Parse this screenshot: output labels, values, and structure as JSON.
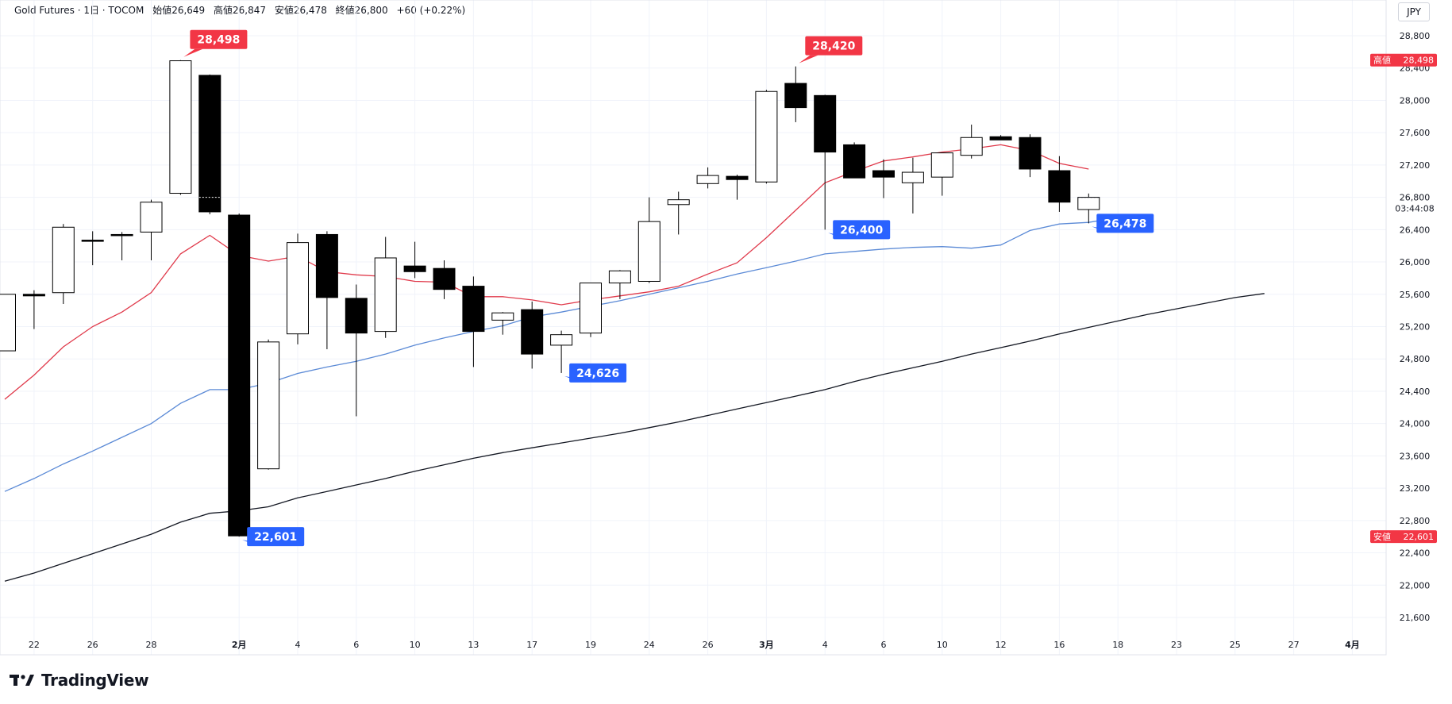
{
  "header": {
    "symbol": "Gold Futures · 1日 · TOCOM",
    "open": "始値26,649",
    "high": "高値26,847",
    "low": "安値26,478",
    "close": "終値26,800",
    "change": "+60 (+0.22%)"
  },
  "currency": "JPY",
  "brand": "TradingView",
  "colors": {
    "up_body": "#ffffff",
    "down_body": "#000000",
    "ma_short": "#e03a4b",
    "ma_mid": "#5b8ad6",
    "ma_long": "#131722",
    "high_tag": "#f23645",
    "low_tag": "#2962ff"
  },
  "chart_data": {
    "type": "candlestick",
    "ylim": [
      21400,
      28900
    ],
    "y_ticks": [
      "28,800",
      "28,400",
      "28,000",
      "27,600",
      "27,200",
      "26,800",
      "26,400",
      "26,000",
      "25,600",
      "25,200",
      "24,800",
      "24,400",
      "24,000",
      "23,600",
      "23,200",
      "22,800",
      "22,400",
      "22,000",
      "21,600"
    ],
    "y_tick_values": [
      28800,
      28400,
      28000,
      27600,
      27200,
      26800,
      26400,
      26000,
      25600,
      25200,
      24800,
      24400,
      24000,
      23600,
      23200,
      22800,
      22400,
      22000,
      21600
    ],
    "x_ticks": [
      "22",
      "26",
      "28",
      "2月",
      "4",
      "6",
      "10",
      "13",
      "17",
      "19",
      "24",
      "26",
      "3月",
      "4",
      "6",
      "10",
      "12",
      "16",
      "18",
      "23",
      "25",
      "27",
      "4月"
    ],
    "x_tick_bold": [
      "2月",
      "3月",
      "4月"
    ],
    "x_tick_index": [
      1,
      3,
      5,
      8,
      10,
      12,
      14,
      16,
      18,
      20,
      22,
      24,
      26,
      28,
      30,
      32,
      34,
      36,
      38,
      40,
      42,
      44,
      46
    ],
    "candles": [
      {
        "o": 24900,
        "h": 25600,
        "l": 24900,
        "c": 25600
      },
      {
        "o": 25600,
        "h": 25650,
        "l": 25170,
        "c": 25580
      },
      {
        "o": 25620,
        "h": 26470,
        "l": 25480,
        "c": 26430
      },
      {
        "o": 26270,
        "h": 26380,
        "l": 25960,
        "c": 26260
      },
      {
        "o": 26340,
        "h": 26370,
        "l": 26020,
        "c": 26330
      },
      {
        "o": 26370,
        "h": 26770,
        "l": 26020,
        "c": 26740
      },
      {
        "o": 26850,
        "h": 28498,
        "l": 26830,
        "c": 28490
      },
      {
        "o": 28310,
        "h": 28320,
        "l": 26590,
        "c": 26620
      },
      {
        "o": 26580,
        "h": 26600,
        "l": 22601,
        "c": 22610
      },
      {
        "o": 23440,
        "h": 25040,
        "l": 23430,
        "c": 25010
      },
      {
        "o": 25110,
        "h": 26350,
        "l": 24980,
        "c": 26240
      },
      {
        "o": 26340,
        "h": 26380,
        "l": 24920,
        "c": 25560
      },
      {
        "o": 25550,
        "h": 25720,
        "l": 24090,
        "c": 25120
      },
      {
        "o": 25140,
        "h": 26310,
        "l": 25060,
        "c": 26050
      },
      {
        "o": 25950,
        "h": 26250,
        "l": 25800,
        "c": 25880
      },
      {
        "o": 25920,
        "h": 26020,
        "l": 25540,
        "c": 25660
      },
      {
        "o": 25700,
        "h": 25820,
        "l": 24700,
        "c": 25140
      },
      {
        "o": 25280,
        "h": 25380,
        "l": 25100,
        "c": 25370
      },
      {
        "o": 25410,
        "h": 25510,
        "l": 24680,
        "c": 24860
      },
      {
        "o": 24970,
        "h": 25150,
        "l": 24626,
        "c": 25100
      },
      {
        "o": 25120,
        "h": 25720,
        "l": 25070,
        "c": 25740
      },
      {
        "o": 25740,
        "h": 25900,
        "l": 25540,
        "c": 25890
      },
      {
        "o": 25760,
        "h": 26800,
        "l": 25740,
        "c": 26500
      },
      {
        "o": 26710,
        "h": 26870,
        "l": 26340,
        "c": 26770
      },
      {
        "o": 26970,
        "h": 27170,
        "l": 26910,
        "c": 27070
      },
      {
        "o": 27060,
        "h": 27080,
        "l": 26770,
        "c": 27020
      },
      {
        "o": 26990,
        "h": 28130,
        "l": 26970,
        "c": 28110
      },
      {
        "o": 28210,
        "h": 28420,
        "l": 27730,
        "c": 27910
      },
      {
        "o": 28060,
        "h": 28070,
        "l": 26400,
        "c": 27360
      },
      {
        "o": 27450,
        "h": 27480,
        "l": 27050,
        "c": 27040
      },
      {
        "o": 27130,
        "h": 27270,
        "l": 26790,
        "c": 27050
      },
      {
        "o": 26980,
        "h": 27290,
        "l": 26600,
        "c": 27110
      },
      {
        "o": 27050,
        "h": 27350,
        "l": 26820,
        "c": 27350
      },
      {
        "o": 27320,
        "h": 27700,
        "l": 27280,
        "c": 27540
      },
      {
        "o": 27550,
        "h": 27570,
        "l": 27520,
        "c": 27510
      },
      {
        "o": 27540,
        "h": 27580,
        "l": 27050,
        "c": 27150
      },
      {
        "o": 27130,
        "h": 27310,
        "l": 26620,
        "c": 26740
      },
      {
        "o": 26649,
        "h": 26847,
        "l": 26478,
        "c": 26800
      }
    ],
    "ma_short": [
      24300,
      24600,
      24950,
      25200,
      25380,
      25620,
      26100,
      26330,
      26080,
      26010,
      26070,
      25880,
      25840,
      25820,
      25760,
      25750,
      25570,
      25570,
      25530,
      25470,
      25530,
      25580,
      25630,
      25700,
      25850,
      25990,
      26300,
      26640,
      26980,
      27120,
      27250,
      27300,
      27360,
      27400,
      27450,
      27380,
      27220,
      27150
    ],
    "ma_mid": [
      23160,
      23320,
      23500,
      23660,
      23830,
      24000,
      24250,
      24420,
      24420,
      24500,
      24620,
      24700,
      24770,
      24860,
      24970,
      25060,
      25140,
      25210,
      25320,
      25380,
      25450,
      25520,
      25600,
      25680,
      25760,
      25850,
      25930,
      26010,
      26100,
      26130,
      26160,
      26180,
      26190,
      26170,
      26210,
      26390,
      26470,
      26490,
      26550
    ],
    "ma_long": [
      22050,
      22150,
      22270,
      22390,
      22510,
      22630,
      22780,
      22890,
      22920,
      22970,
      23080,
      23160,
      23240,
      23320,
      23410,
      23490,
      23570,
      23640,
      23700,
      23760,
      23820,
      23880,
      23950,
      24020,
      24100,
      24180,
      24260,
      24340,
      24420,
      24520,
      24610,
      24690,
      24770,
      24860,
      24940,
      25020,
      25110,
      25190,
      25270,
      25350,
      25420,
      25490,
      25560,
      25610
    ],
    "callouts": [
      {
        "label": "28,498",
        "kind": "high",
        "index": 6,
        "value": 28498
      },
      {
        "label": "28,420",
        "kind": "high",
        "index": 27,
        "value": 28420
      },
      {
        "label": "22,601",
        "kind": "low",
        "index": 8,
        "value": 22601
      },
      {
        "label": "24,626",
        "kind": "low",
        "index": 19,
        "value": 24626
      },
      {
        "label": "26,400",
        "kind": "low",
        "index": 28,
        "value": 26400
      },
      {
        "label": "26,478",
        "kind": "low",
        "index": 37,
        "value": 26478
      }
    ],
    "axis_tags": [
      {
        "name": "高値",
        "value_label": "28,498",
        "value": 28498,
        "color": "#f23645"
      },
      {
        "name": "安値",
        "value_label": "22,601",
        "value": 22601,
        "color": "#f23645"
      }
    ],
    "countdown": "03:44:08",
    "current_price": 26800
  }
}
